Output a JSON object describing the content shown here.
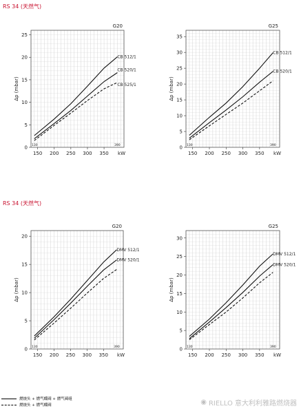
{
  "sections": [
    {
      "title": "RS 34 (天然气)"
    },
    {
      "title": "RS 34 (天然气)"
    }
  ],
  "legend": [
    {
      "label": "燃烧头 + 燃气蝶阀 + 燃气阀组",
      "style": "solid"
    },
    {
      "label": "燃烧头 + 燃气蝶阀",
      "style": "dashed"
    }
  ],
  "watermark": {
    "text": "RIELLO 意大利利雅路燃烧器",
    "icon": "wechat-icon"
  },
  "chart_data": [
    {
      "type": "line",
      "title": "G20",
      "xlabel": "kW",
      "ylabel": "Δp (mbar)",
      "xlim": [
        130,
        410
      ],
      "ylim": [
        0,
        26
      ],
      "xticks": [
        150,
        200,
        250,
        300,
        350
      ],
      "yticks": [
        0,
        5,
        10,
        15,
        20,
        25
      ],
      "range_markers": [
        130,
        390
      ],
      "grid": true,
      "series": [
        {
          "name": "CB 512/1",
          "style": "solid",
          "x": [
            140,
            200,
            250,
            300,
            350,
            390
          ],
          "y": [
            2.6,
            6.3,
            9.7,
            13.6,
            17.6,
            20.1
          ]
        },
        {
          "name": "CB 520/1",
          "style": "solid",
          "x": [
            140,
            200,
            250,
            300,
            350,
            390
          ],
          "y": [
            1.9,
            5.3,
            8.2,
            11.4,
            14.6,
            16.6
          ]
        },
        {
          "name": "CB 525/1",
          "style": "dashed",
          "x": [
            140,
            200,
            250,
            300,
            350,
            390
          ],
          "y": [
            1.5,
            4.9,
            7.6,
            10.4,
            13.0,
            14.4
          ]
        }
      ]
    },
    {
      "type": "line",
      "title": "G25",
      "xlabel": "kW",
      "ylabel": "Δp (mbar)",
      "xlim": [
        130,
        410
      ],
      "ylim": [
        0,
        37
      ],
      "xticks": [
        150,
        200,
        250,
        300,
        350
      ],
      "yticks": [
        0,
        5,
        10,
        15,
        20,
        25,
        30,
        35
      ],
      "range_markers": [
        130,
        390
      ],
      "grid": true,
      "series": [
        {
          "name": "CB 512/1",
          "style": "solid",
          "x": [
            140,
            200,
            250,
            300,
            350,
            390
          ],
          "y": [
            3.8,
            9.5,
            14.0,
            19.2,
            25.0,
            29.9
          ]
        },
        {
          "name": "CB 520/1",
          "style": "solid",
          "x": [
            140,
            200,
            250,
            300,
            350,
            390
          ],
          "y": [
            2.9,
            7.8,
            11.8,
            16.0,
            20.6,
            24.0
          ]
        },
        {
          "name": "",
          "style": "dashed",
          "x": [
            140,
            200,
            250,
            300,
            350,
            390
          ],
          "y": [
            2.4,
            6.8,
            10.4,
            14.0,
            17.9,
            21.0
          ]
        }
      ]
    },
    {
      "type": "line",
      "title": "G20",
      "xlabel": "kW",
      "ylabel": "Δp (mbar)",
      "xlim": [
        130,
        410
      ],
      "ylim": [
        0,
        21
      ],
      "xticks": [
        150,
        200,
        250,
        300,
        350
      ],
      "yticks": [
        0,
        5,
        10,
        15,
        20
      ],
      "range_markers": [
        130,
        390
      ],
      "grid": true,
      "series": [
        {
          "name": "DMV 512/1",
          "style": "solid",
          "x": [
            140,
            200,
            250,
            300,
            350,
            390
          ],
          "y": [
            2.3,
            5.7,
            8.8,
            12.1,
            15.4,
            17.6
          ]
        },
        {
          "name": "DMV 520/1",
          "style": "solid",
          "x": [
            140,
            200,
            250,
            300,
            350,
            390
          ],
          "y": [
            1.9,
            5.2,
            8.1,
            11.1,
            14.0,
            15.8
          ]
        },
        {
          "name": "",
          "style": "dashed",
          "x": [
            140,
            200,
            250,
            300,
            350,
            390
          ],
          "y": [
            1.6,
            4.6,
            7.2,
            9.9,
            12.5,
            14.1
          ]
        }
      ]
    },
    {
      "type": "line",
      "title": "G25",
      "xlabel": "kW",
      "ylabel": "Δp (mbar)",
      "xlim": [
        130,
        410
      ],
      "ylim": [
        0,
        32
      ],
      "xticks": [
        150,
        200,
        250,
        300,
        350
      ],
      "yticks": [
        0,
        5,
        10,
        15,
        20,
        25,
        30
      ],
      "range_markers": [
        130,
        390
      ],
      "grid": true,
      "series": [
        {
          "name": "DMV 512/1",
          "style": "solid",
          "x": [
            140,
            200,
            250,
            300,
            350,
            390
          ],
          "y": [
            3.4,
            8.1,
            12.5,
            17.3,
            22.4,
            25.7
          ]
        },
        {
          "name": "DMV 520/1",
          "style": "solid",
          "x": [
            140,
            200,
            250,
            300,
            350,
            390
          ],
          "y": [
            2.8,
            7.3,
            11.2,
            15.3,
            19.7,
            22.8
          ]
        },
        {
          "name": "",
          "style": "dashed",
          "x": [
            140,
            200,
            250,
            300,
            350,
            390
          ],
          "y": [
            2.5,
            6.6,
            10.0,
            13.8,
            17.9,
            20.7
          ]
        }
      ]
    }
  ]
}
